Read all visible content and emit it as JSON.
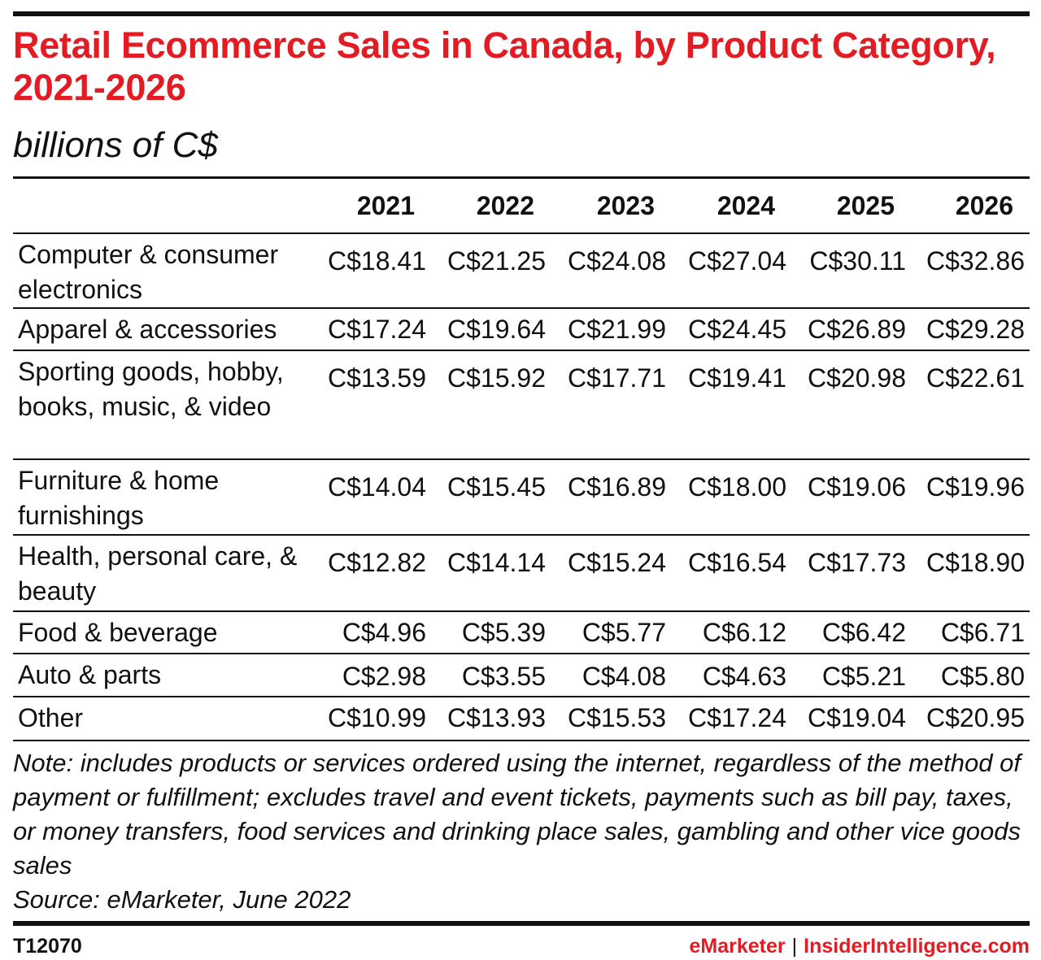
{
  "title": "Retail Ecommerce Sales in Canada, by Product Category, 2021-2026",
  "subtitle": "billions of C$",
  "note": "Note: includes products or services ordered using the internet, regardless of the method of payment or fulfillment; excludes travel and event tickets, payments such as bill pay, taxes, or money transfers, food services and drinking place sales, gambling and other vice goods sales",
  "source": "Source: eMarketer, June 2022",
  "footer": {
    "chart_id": "T12070",
    "brand_emarketer": "eMarketer",
    "brand_separator": "|",
    "brand_insider": "InsiderIntelligence.com"
  },
  "colors": {
    "accent_red": "#e31b23",
    "text": "#111111",
    "rule": "#111111",
    "background": "#ffffff"
  },
  "chart_data": {
    "type": "table",
    "title": "Retail Ecommerce Sales in Canada, by Product Category, 2021-2026",
    "subtitle": "billions of C$",
    "columns": [
      "2021",
      "2022",
      "2023",
      "2024",
      "2025",
      "2026"
    ],
    "rows": [
      {
        "category": "Computer & consumer electronics",
        "values": [
          "C$18.41",
          "C$21.25",
          "C$24.08",
          "C$27.04",
          "C$30.11",
          "C$32.86"
        ]
      },
      {
        "category": "Apparel & accessories",
        "values": [
          "C$17.24",
          "C$19.64",
          "C$21.99",
          "C$24.45",
          "C$26.89",
          "C$29.28"
        ]
      },
      {
        "category": "Sporting goods, hobby, books, music, & video",
        "values": [
          "C$13.59",
          "C$15.92",
          "C$17.71",
          "C$19.41",
          "C$20.98",
          "C$22.61"
        ]
      },
      {
        "category": "Furniture & home furnishings",
        "values": [
          "C$14.04",
          "C$15.45",
          "C$16.89",
          "C$18.00",
          "C$19.06",
          "C$19.96"
        ]
      },
      {
        "category": "Health, personal care, & beauty",
        "values": [
          "C$12.82",
          "C$14.14",
          "C$15.24",
          "C$16.54",
          "C$17.73",
          "C$18.90"
        ]
      },
      {
        "category": "Food & beverage",
        "values": [
          "C$4.96",
          "C$5.39",
          "C$5.77",
          "C$6.12",
          "C$6.42",
          "C$6.71"
        ]
      },
      {
        "category": "Auto & parts",
        "values": [
          "C$2.98",
          "C$3.55",
          "C$4.08",
          "C$4.63",
          "C$5.21",
          "C$5.80"
        ]
      },
      {
        "category": "Other",
        "values": [
          "C$10.99",
          "C$13.93",
          "C$15.53",
          "C$17.24",
          "C$19.04",
          "C$20.95"
        ]
      }
    ]
  }
}
